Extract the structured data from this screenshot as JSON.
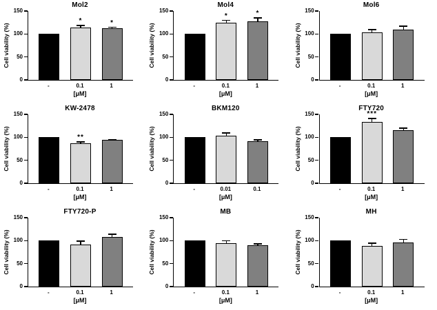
{
  "figure": {
    "background": "#ffffff",
    "grid": "3x3 subplots",
    "bar_fill_colors": [
      "#000000",
      "#d9d9d9",
      "#808080"
    ],
    "bar_border_color": "#000000",
    "axis_color": "#000000"
  },
  "chart_config": {
    "type": "bar",
    "ylim": [
      0,
      150
    ],
    "yticks": [
      0,
      50,
      100,
      150
    ],
    "grid_lines": "off",
    "legend": "none",
    "error_bars": "upper caps on treated bars",
    "ylabel": "Cell viability (%)",
    "xlabel": "[μM]"
  },
  "chart_data": [
    {
      "type": "bar",
      "title": "Mol2",
      "categories": [
        "-",
        "0.1",
        "1"
      ],
      "values": [
        100,
        114,
        112
      ],
      "errors": [
        0,
        6,
        4
      ],
      "significance": [
        "",
        "*",
        "*"
      ],
      "ylabel": "Cell viability (%)",
      "xlabel": "[μM]",
      "ylim": [
        0,
        150
      ],
      "yticks": [
        0,
        50,
        100,
        150
      ]
    },
    {
      "type": "bar",
      "title": "Mol4",
      "categories": [
        "-",
        "0.1",
        "1"
      ],
      "values": [
        100,
        124,
        127
      ],
      "errors": [
        0,
        7,
        9
      ],
      "significance": [
        "",
        "*",
        "*"
      ],
      "ylabel": "Cell viability (%)",
      "xlabel": "[μM]",
      "ylim": [
        0,
        150
      ],
      "yticks": [
        0,
        50,
        100,
        150
      ]
    },
    {
      "type": "bar",
      "title": "Mol6",
      "categories": [
        "-",
        "0.1",
        "1"
      ],
      "values": [
        100,
        103,
        110
      ],
      "errors": [
        0,
        8,
        8
      ],
      "significance": [
        "",
        "",
        ""
      ],
      "ylabel": "Cell viability (%)",
      "xlabel": "[μM]",
      "ylim": [
        0,
        150
      ],
      "yticks": [
        0,
        50,
        100,
        150
      ]
    },
    {
      "type": "bar",
      "title": "KW-2478",
      "categories": [
        "-",
        "0.1",
        "1"
      ],
      "values": [
        100,
        87,
        94
      ],
      "errors": [
        0,
        4,
        2
      ],
      "significance": [
        "",
        "**",
        ""
      ],
      "ylabel": "Cell viability (%)",
      "xlabel": "[μM]",
      "ylim": [
        0,
        150
      ],
      "yticks": [
        0,
        50,
        100,
        150
      ]
    },
    {
      "type": "bar",
      "title": "BKM120",
      "categories": [
        "-",
        "0.01",
        "0.1"
      ],
      "values": [
        100,
        104,
        91
      ],
      "errors": [
        0,
        7,
        5
      ],
      "significance": [
        "",
        "",
        ""
      ],
      "ylabel": "Cell viability (%)",
      "xlabel": "[μM]",
      "ylim": [
        0,
        150
      ],
      "yticks": [
        0,
        50,
        100,
        150
      ]
    },
    {
      "type": "bar",
      "title": "FTY720",
      "categories": [
        "-",
        "0.1",
        "1"
      ],
      "values": [
        100,
        134,
        115
      ],
      "errors": [
        0,
        8,
        6
      ],
      "significance": [
        "",
        "***",
        ""
      ],
      "ylabel": "Cell viability (%)",
      "xlabel": "[μM]",
      "ylim": [
        0,
        150
      ],
      "yticks": [
        0,
        50,
        100,
        150
      ]
    },
    {
      "type": "bar",
      "title": "FTY720-P",
      "categories": [
        "-",
        "0.1",
        "1"
      ],
      "values": [
        100,
        92,
        108
      ],
      "errors": [
        0,
        8,
        7
      ],
      "significance": [
        "",
        "",
        ""
      ],
      "ylabel": "Cell viability (%)",
      "xlabel": "[μM]",
      "ylim": [
        0,
        150
      ],
      "yticks": [
        0,
        50,
        100,
        150
      ]
    },
    {
      "type": "bar",
      "title": "MB",
      "categories": [
        "-",
        "0.1",
        "1"
      ],
      "values": [
        100,
        95,
        90
      ],
      "errors": [
        0,
        6,
        4
      ],
      "significance": [
        "",
        "",
        ""
      ],
      "ylabel": "Cell viability (%)",
      "xlabel": "[μM]",
      "ylim": [
        0,
        150
      ],
      "yticks": [
        0,
        50,
        100,
        150
      ]
    },
    {
      "type": "bar",
      "title": "MH",
      "categories": [
        "-",
        "0.1",
        "1"
      ],
      "values": [
        100,
        88,
        96
      ],
      "errors": [
        0,
        8,
        8
      ],
      "significance": [
        "",
        "",
        ""
      ],
      "ylabel": "Cell viability (%)",
      "xlabel": "[μM]",
      "ylim": [
        0,
        150
      ],
      "yticks": [
        0,
        50,
        100,
        150
      ]
    }
  ]
}
